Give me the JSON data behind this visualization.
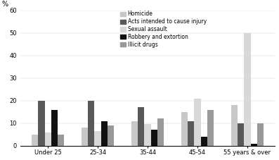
{
  "categories": [
    "Under 25",
    "25-34",
    "35-44",
    "45-54",
    "55 years & over"
  ],
  "series_names": [
    "Homicide",
    "Acts intended to cause injury",
    "Sexual assault",
    "Robbery and extortion",
    "Illicit drugs"
  ],
  "series_data": {
    "Homicide": [
      5,
      8,
      11,
      15,
      18
    ],
    "Acts intended to cause injury": [
      20,
      20,
      17,
      11,
      10
    ],
    "Sexual assault": [
      6,
      6.5,
      9.5,
      21,
      50
    ],
    "Robbery and extortion": [
      16,
      11,
      7,
      4,
      1
    ],
    "Illicit drugs": [
      5,
      9,
      12,
      16,
      10
    ]
  },
  "colors": {
    "Homicide": "#c8c8c8",
    "Acts intended to cause injury": "#595959",
    "Sexual assault": "#d8d8d8",
    "Robbery and extortion": "#111111",
    "Illicit drugs": "#999999"
  },
  "ylabel": "%",
  "ylim": [
    0,
    60
  ],
  "yticks": [
    0,
    10,
    20,
    30,
    40,
    50,
    60
  ],
  "bar_width": 0.13,
  "background_color": "#ffffff",
  "tick_fontsize": 6.0,
  "legend_fontsize": 5.5
}
